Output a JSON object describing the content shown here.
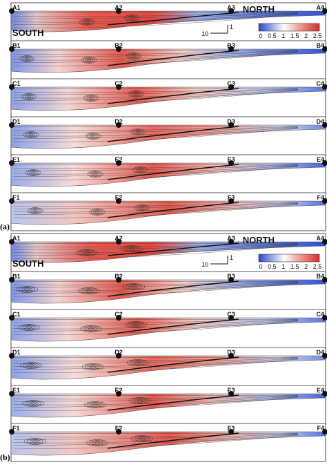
{
  "panels": [
    {
      "tag": "(a)",
      "north": "NORTH",
      "south": "SOUTH",
      "scale_h": "10",
      "scale_v": "1",
      "colorbar": [
        "0",
        "0.5",
        "1",
        "1.5",
        "2",
        "2.5"
      ],
      "strips": [
        {
          "labels": [
            "A1",
            "A2",
            "A3",
            "A4"
          ]
        },
        {
          "labels": [
            "B1",
            "B2",
            "B3",
            "B4"
          ]
        },
        {
          "labels": [
            "C1",
            "C2",
            "C3",
            "C4"
          ]
        },
        {
          "labels": [
            "D1",
            "D2",
            "D3",
            "D4"
          ]
        },
        {
          "labels": [
            "E1",
            "E2",
            "E3",
            "E4"
          ]
        },
        {
          "labels": [
            "F1",
            "F2",
            "F3",
            "F4"
          ]
        }
      ]
    },
    {
      "tag": "(b)",
      "north": "NORTH",
      "south": "SOUTH",
      "scale_h": "10",
      "scale_v": "1",
      "colorbar": [
        "0",
        "0.5",
        "1",
        "1.5",
        "2",
        "2.5"
      ],
      "strips": [
        {
          "labels": [
            "A1",
            "A2",
            "A3",
            "A4"
          ]
        },
        {
          "labels": [
            "B1",
            "B2",
            "B3",
            "B4"
          ]
        },
        {
          "labels": [
            "C1",
            "C2",
            "C3",
            "C4"
          ]
        },
        {
          "labels": [
            "D1",
            "D2",
            "D3",
            "D4"
          ]
        },
        {
          "labels": [
            "E1",
            "E2",
            "E3",
            "E4"
          ]
        },
        {
          "labels": [
            "F1",
            "F2",
            "F3",
            "F4"
          ]
        }
      ]
    }
  ],
  "colorbar_colors": [
    "#2a44c8",
    "#a9b8ea",
    "#ffffff",
    "#f1a59c",
    "#d52e2a"
  ]
}
